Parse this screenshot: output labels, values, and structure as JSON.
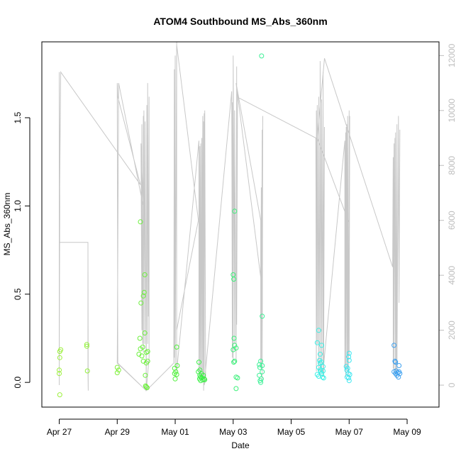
{
  "chart_data": {
    "type": "scatter",
    "title": "ATOM4 Southbound MS_Abs_360nm",
    "xlabel": "Date",
    "ylabel": "MS_Abs_360nm",
    "x_unit": "days since Apr 27",
    "xlim": [
      -0.6,
      13.1
    ],
    "ylim": [
      -0.14,
      1.93
    ],
    "y2lim": [
      -800,
      12500
    ],
    "x_ticks": [
      {
        "label": "Apr 27",
        "value": 0
      },
      {
        "label": "Apr 29",
        "value": 2
      },
      {
        "label": "May 01",
        "value": 4
      },
      {
        "label": "May 03",
        "value": 6
      },
      {
        "label": "May 05",
        "value": 8
      },
      {
        "label": "May 07",
        "value": 10
      },
      {
        "label": "May 09",
        "value": 12
      }
    ],
    "y_ticks": [
      {
        "label": "0.0",
        "value": 0.0
      },
      {
        "label": "0.5",
        "value": 0.5
      },
      {
        "label": "1.0",
        "value": 1.0
      },
      {
        "label": "1.5",
        "value": 1.5
      }
    ],
    "y2_ticks": [
      {
        "label": "0",
        "value": 0
      },
      {
        "label": "2000",
        "value": 2000
      },
      {
        "label": "4000",
        "value": 4000
      },
      {
        "label": "6000",
        "value": 6000
      },
      {
        "label": "8000",
        "value": 8000
      },
      {
        "label": "10000",
        "value": 10000
      },
      {
        "label": "12000",
        "value": 12000
      }
    ],
    "points": [
      {
        "x": 0.0,
        "y": 0.07,
        "color": "#9cf03c"
      },
      {
        "x": 0.0,
        "y": 0.05,
        "color": "#9cf03c"
      },
      {
        "x": 0.02,
        "y": 0.14,
        "color": "#9cf03c"
      },
      {
        "x": 0.02,
        "y": 0.175,
        "color": "#9cf03c"
      },
      {
        "x": 0.05,
        "y": 0.185,
        "color": "#9cf03c"
      },
      {
        "x": 0.02,
        "y": -0.07,
        "color": "#9cf03c"
      },
      {
        "x": 0.95,
        "y": 0.205,
        "color": "#92f03c"
      },
      {
        "x": 0.95,
        "y": 0.215,
        "color": "#92f03c"
      },
      {
        "x": 0.97,
        "y": 0.065,
        "color": "#92f03c"
      },
      {
        "x": 2.0,
        "y": 0.085,
        "color": "#80f03c"
      },
      {
        "x": 2.0,
        "y": 0.055,
        "color": "#80f03c"
      },
      {
        "x": 2.05,
        "y": 0.07,
        "color": "#80f03c"
      },
      {
        "x": 2.8,
        "y": 0.91,
        "color": "#6cf03c"
      },
      {
        "x": 2.75,
        "y": 0.16,
        "color": "#6cf03c"
      },
      {
        "x": 2.78,
        "y": 0.25,
        "color": "#6cf03c"
      },
      {
        "x": 2.8,
        "y": 0.19,
        "color": "#6cf03c"
      },
      {
        "x": 2.82,
        "y": 0.45,
        "color": "#6cf03c"
      },
      {
        "x": 2.85,
        "y": 0.15,
        "color": "#6cf03c"
      },
      {
        "x": 2.88,
        "y": 0.2,
        "color": "#6cf03c"
      },
      {
        "x": 2.9,
        "y": 0.12,
        "color": "#6cf03c"
      },
      {
        "x": 2.9,
        "y": 0.49,
        "color": "#6cf03c"
      },
      {
        "x": 2.93,
        "y": 0.51,
        "color": "#6cf03c"
      },
      {
        "x": 2.95,
        "y": 0.61,
        "color": "#6cf03c"
      },
      {
        "x": 2.95,
        "y": 0.28,
        "color": "#6cf03c"
      },
      {
        "x": 2.97,
        "y": 0.04,
        "color": "#6cf03c"
      },
      {
        "x": 2.98,
        "y": -0.02,
        "color": "#6cf03c"
      },
      {
        "x": 3.0,
        "y": 0.17,
        "color": "#6cf03c"
      },
      {
        "x": 3.0,
        "y": 0.11,
        "color": "#6cf03c"
      },
      {
        "x": 3.03,
        "y": -0.03,
        "color": "#6cf03c"
      },
      {
        "x": 3.05,
        "y": 0.175,
        "color": "#6cf03c"
      },
      {
        "x": 3.05,
        "y": 0.12,
        "color": "#6cf03c"
      },
      {
        "x": 3.0,
        "y": -0.025,
        "color": "#6cf03c"
      },
      {
        "x": 3.98,
        "y": 0.05,
        "color": "#50f03c"
      },
      {
        "x": 3.98,
        "y": 0.08,
        "color": "#50f03c"
      },
      {
        "x": 4.0,
        "y": 0.02,
        "color": "#50f03c"
      },
      {
        "x": 4.02,
        "y": 0.06,
        "color": "#50f03c"
      },
      {
        "x": 4.05,
        "y": 0.2,
        "color": "#50f03c"
      },
      {
        "x": 4.07,
        "y": 0.095,
        "color": "#50f03c"
      },
      {
        "x": 4.05,
        "y": 0.045,
        "color": "#50f03c"
      },
      {
        "x": 4.8,
        "y": 0.06,
        "color": "#3cf046"
      },
      {
        "x": 4.82,
        "y": 0.115,
        "color": "#3cf046"
      },
      {
        "x": 4.84,
        "y": 0.02,
        "color": "#3cf046"
      },
      {
        "x": 4.85,
        "y": 0.04,
        "color": "#3cf046"
      },
      {
        "x": 4.87,
        "y": 0.03,
        "color": "#3cf046"
      },
      {
        "x": 4.88,
        "y": 0.01,
        "color": "#3cf046"
      },
      {
        "x": 4.9,
        "y": 0.05,
        "color": "#3cf046"
      },
      {
        "x": 4.92,
        "y": 0.025,
        "color": "#3cf046"
      },
      {
        "x": 4.95,
        "y": 0.015,
        "color": "#3cf046"
      },
      {
        "x": 4.97,
        "y": 0.04,
        "color": "#3cf046"
      },
      {
        "x": 5.0,
        "y": 0.02,
        "color": "#3cf046"
      },
      {
        "x": 5.02,
        "y": 0.015,
        "color": "#3cf046"
      },
      {
        "x": 4.85,
        "y": 0.07,
        "color": "#3cf046"
      },
      {
        "x": 6.05,
        "y": 0.97,
        "color": "#3cf07a"
      },
      {
        "x": 6.0,
        "y": 0.61,
        "color": "#3cf07a"
      },
      {
        "x": 6.02,
        "y": 0.585,
        "color": "#3cf07a"
      },
      {
        "x": 6.03,
        "y": 0.25,
        "color": "#3cf07a"
      },
      {
        "x": 6.0,
        "y": 0.185,
        "color": "#3cf07a"
      },
      {
        "x": 6.05,
        "y": 0.21,
        "color": "#3cf07a"
      },
      {
        "x": 6.1,
        "y": 0.195,
        "color": "#3cf07a"
      },
      {
        "x": 6.02,
        "y": 0.115,
        "color": "#3cf07a"
      },
      {
        "x": 6.05,
        "y": 0.12,
        "color": "#3cf07a"
      },
      {
        "x": 6.1,
        "y": 0.03,
        "color": "#3cf07a"
      },
      {
        "x": 6.15,
        "y": 0.025,
        "color": "#3cf07a"
      },
      {
        "x": 6.1,
        "y": -0.035,
        "color": "#3cf07a"
      },
      {
        "x": 6.98,
        "y": 1.85,
        "color": "#3cf096"
      },
      {
        "x": 7.0,
        "y": 0.375,
        "color": "#3cf096"
      },
      {
        "x": 6.9,
        "y": 0.1,
        "color": "#3cf096"
      },
      {
        "x": 6.92,
        "y": 0.085,
        "color": "#3cf096"
      },
      {
        "x": 6.95,
        "y": 0.12,
        "color": "#3cf096"
      },
      {
        "x": 6.9,
        "y": 0.04,
        "color": "#3cf096"
      },
      {
        "x": 6.93,
        "y": 0.01,
        "color": "#3cf096"
      },
      {
        "x": 6.95,
        "y": 0.0,
        "color": "#3cf096"
      },
      {
        "x": 6.97,
        "y": 0.02,
        "color": "#3cf096"
      },
      {
        "x": 7.0,
        "y": 0.095,
        "color": "#3cf096"
      },
      {
        "x": 7.0,
        "y": 0.06,
        "color": "#3cf096"
      },
      {
        "x": 8.95,
        "y": 0.295,
        "color": "#3cf0e6"
      },
      {
        "x": 8.9,
        "y": 0.225,
        "color": "#3cf0e6"
      },
      {
        "x": 9.05,
        "y": 0.21,
        "color": "#3cf0e6"
      },
      {
        "x": 9.0,
        "y": 0.16,
        "color": "#3cf0e6"
      },
      {
        "x": 8.98,
        "y": 0.125,
        "color": "#3cf0e6"
      },
      {
        "x": 9.0,
        "y": 0.11,
        "color": "#3cf0e6"
      },
      {
        "x": 9.05,
        "y": 0.115,
        "color": "#3cf0e6"
      },
      {
        "x": 9.1,
        "y": 0.09,
        "color": "#3cf0e6"
      },
      {
        "x": 8.95,
        "y": 0.085,
        "color": "#3cf0e6"
      },
      {
        "x": 9.0,
        "y": 0.07,
        "color": "#3cf0e6"
      },
      {
        "x": 9.02,
        "y": 0.06,
        "color": "#3cf0e6"
      },
      {
        "x": 9.05,
        "y": 0.05,
        "color": "#3cf0e6"
      },
      {
        "x": 9.1,
        "y": 0.065,
        "color": "#3cf0e6"
      },
      {
        "x": 8.9,
        "y": 0.045,
        "color": "#3cf0e6"
      },
      {
        "x": 8.95,
        "y": 0.035,
        "color": "#3cf0e6"
      },
      {
        "x": 9.08,
        "y": 0.03,
        "color": "#3cf0e6"
      },
      {
        "x": 9.12,
        "y": 0.025,
        "color": "#3cf0e6"
      },
      {
        "x": 9.9,
        "y": 0.09,
        "color": "#3ce6f0"
      },
      {
        "x": 9.92,
        "y": 0.07,
        "color": "#3ce6f0"
      },
      {
        "x": 9.95,
        "y": 0.08,
        "color": "#3ce6f0"
      },
      {
        "x": 9.97,
        "y": 0.05,
        "color": "#3ce6f0"
      },
      {
        "x": 9.93,
        "y": 0.03,
        "color": "#3ce6f0"
      },
      {
        "x": 9.98,
        "y": 0.025,
        "color": "#3ce6f0"
      },
      {
        "x": 10.0,
        "y": 0.01,
        "color": "#3ce6f0"
      },
      {
        "x": 10.02,
        "y": 0.045,
        "color": "#3ce6f0"
      },
      {
        "x": 10.0,
        "y": 0.165,
        "color": "#3ce6f0"
      },
      {
        "x": 9.98,
        "y": 0.145,
        "color": "#3ce6f0"
      },
      {
        "x": 10.0,
        "y": 0.125,
        "color": "#3ce6f0"
      },
      {
        "x": 11.55,
        "y": 0.21,
        "color": "#3ca0f0"
      },
      {
        "x": 11.58,
        "y": 0.12,
        "color": "#3ca0f0"
      },
      {
        "x": 11.6,
        "y": 0.115,
        "color": "#3ca0f0"
      },
      {
        "x": 11.55,
        "y": 0.06,
        "color": "#3ca0f0"
      },
      {
        "x": 11.6,
        "y": 0.05,
        "color": "#3ca0f0"
      },
      {
        "x": 11.62,
        "y": 0.065,
        "color": "#3ca0f0"
      },
      {
        "x": 11.65,
        "y": 0.04,
        "color": "#3ca0f0"
      },
      {
        "x": 11.68,
        "y": 0.055,
        "color": "#3ca0f0"
      },
      {
        "x": 11.7,
        "y": 0.03,
        "color": "#3ca0f0"
      },
      {
        "x": 11.72,
        "y": 0.095,
        "color": "#3ca0f0"
      },
      {
        "x": 11.75,
        "y": 0.05,
        "color": "#3ca0f0"
      },
      {
        "x": 11.72,
        "y": 0.06,
        "color": "#3ca0f0"
      }
    ],
    "secondary_series": {
      "name": "grey trace (right axis)",
      "color": "#c8c8c8",
      "x": [
        0.0,
        0.0,
        0.02,
        0.0,
        0.0,
        0.99,
        0.99,
        1.0,
        0.99,
        0.0,
        0.05,
        2.8,
        2.02,
        2.0,
        2.02,
        3.0,
        2.0,
        2.05,
        2.9,
        2.82,
        2.85,
        2.85,
        2.88,
        2.9,
        2.9,
        2.92,
        2.95,
        2.96,
        3.0,
        3.02,
        3.05,
        3.05,
        3.07,
        3.1,
        3.1,
        3.0,
        3.95,
        3.97,
        3.97,
        4.0,
        4.0,
        4.05,
        4.05,
        4.8,
        4.05,
        4.05,
        4.82,
        4.82,
        4.85,
        4.85,
        4.88,
        4.88,
        4.92,
        4.92,
        4.95,
        4.95,
        4.98,
        4.98,
        5.0,
        5.0,
        5.02,
        5.05,
        5.0,
        5.95,
        5.97,
        5.97,
        6.0,
        6.0,
        6.05,
        6.05,
        6.1,
        6.12,
        6.12,
        6.15,
        6.1,
        6.95,
        6.95,
        6.97,
        6.97,
        7.0,
        7.0,
        7.02,
        7.0,
        6.15,
        6.12,
        8.85,
        8.87,
        8.87,
        8.9,
        8.9,
        8.95,
        8.95,
        9.0,
        9.0,
        9.05,
        9.05,
        9.1,
        9.1,
        9.12,
        9.15,
        9.1,
        9.85,
        9.85,
        9.88,
        9.88,
        9.9,
        9.92,
        9.92,
        9.95,
        9.95,
        9.97,
        10.0,
        10.0,
        10.02,
        10.0,
        8.9,
        9.15,
        11.5,
        11.52,
        11.52,
        11.55,
        11.55,
        11.58,
        11.6,
        11.6,
        11.62,
        11.65,
        11.65,
        11.7,
        11.72,
        11.75
      ],
      "y": [
        0,
        11400,
        6500,
        600,
        5200,
        5200,
        600,
        -200,
        5200,
        5200,
        11400,
        7300,
        10500,
        11000,
        800,
        -200,
        800,
        11000,
        6500,
        8800,
        2000,
        9500,
        1500,
        9800,
        1200,
        10000,
        1500,
        9600,
        -100,
        10200,
        1500,
        11000,
        2500,
        10500,
        1000,
        -200,
        800,
        11500,
        1000,
        12000,
        600,
        12500,
        2000,
        6000,
        12400,
        500,
        8900,
        500,
        8700,
        200,
        8800,
        300,
        9000,
        400,
        9800,
        100,
        9600,
        -200,
        9900,
        300,
        10000,
        200,
        0,
        10700,
        1000,
        10300,
        800,
        12000,
        1500,
        10000,
        800,
        11600,
        2200,
        10500,
        11000,
        6000,
        800,
        7200,
        600,
        9300,
        200,
        9800,
        3500,
        10600,
        10500,
        9000,
        500,
        10000,
        1500,
        10200,
        500,
        10500,
        300,
        11800,
        500,
        10400,
        300,
        11400,
        300,
        9400,
        500,
        8900,
        600,
        9200,
        300,
        9400,
        600,
        9500,
        500,
        9800,
        300,
        10000,
        1100,
        9800,
        5900,
        9000,
        11900,
        4300,
        8300,
        600,
        8800,
        400,
        9000,
        400,
        9200,
        300,
        9500,
        500,
        9800,
        3000,
        9300
      ]
    }
  }
}
